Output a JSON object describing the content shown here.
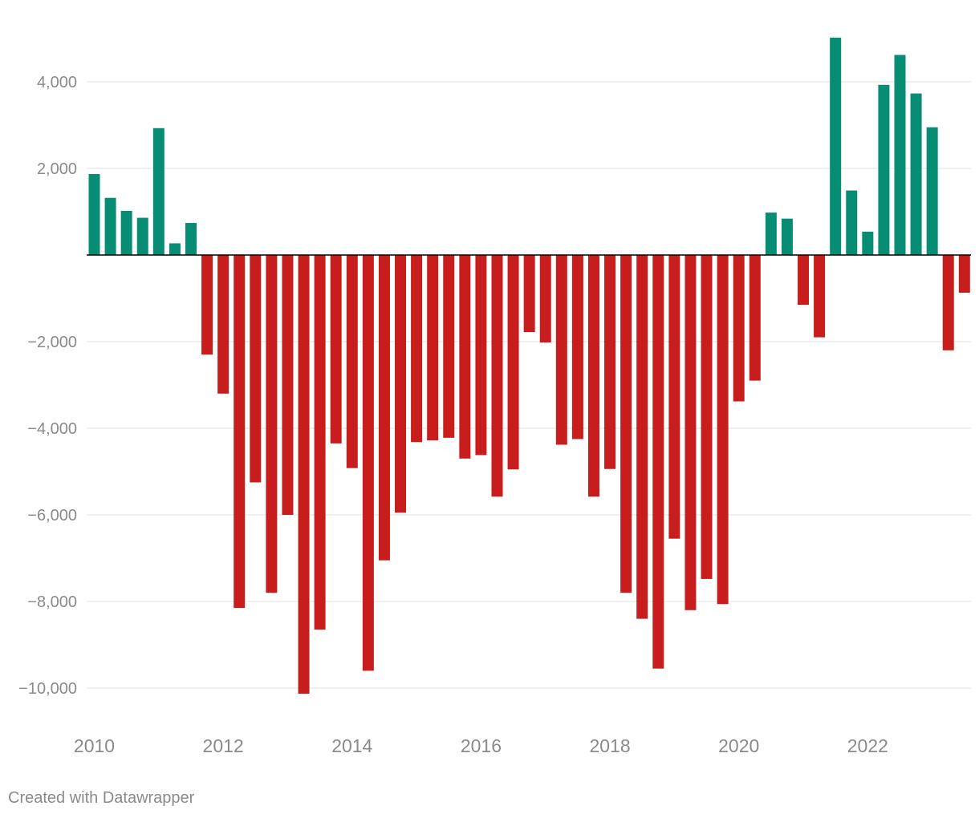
{
  "chart_data": {
    "type": "bar",
    "title": "",
    "xlabel": "",
    "ylabel": "",
    "ylim": [
      -11000,
      5200
    ],
    "yticks": [
      4000,
      2000,
      0,
      -2000,
      -4000,
      -6000,
      -8000,
      -10000
    ],
    "ytick_labels": [
      "4,000",
      "2,000",
      "",
      "−2,000",
      "−4,000",
      "−6,000",
      "−8,000",
      "−10,000"
    ],
    "xticks": [
      {
        "label": "2010",
        "x": 2010.0
      },
      {
        "label": "2012",
        "x": 2012.0
      },
      {
        "label": "2014",
        "x": 2014.0
      },
      {
        "label": "2016",
        "x": 2016.0
      },
      {
        "label": "2018",
        "x": 2018.0
      },
      {
        "label": "2020",
        "x": 2020.0
      },
      {
        "label": "2022",
        "x": 2022.0
      }
    ],
    "x_start": 2010.0,
    "x_step": 0.25,
    "colors": {
      "positive": "#078d74",
      "negative": "#c71e1d",
      "grid": "#e6e6e6",
      "axis": "#000000",
      "tick_text": "#8a8a8a"
    },
    "values": [
      1870,
      1320,
      1020,
      860,
      2930,
      270,
      740,
      -2300,
      -3200,
      -8150,
      -5250,
      -7800,
      -6000,
      -10130,
      -8650,
      -4350,
      -4920,
      -9600,
      -7050,
      -5950,
      -4320,
      -4280,
      -4220,
      -4700,
      -4620,
      -5580,
      -4950,
      -1780,
      -2020,
      -4380,
      -4250,
      -5580,
      -4940,
      -7800,
      -8400,
      -9550,
      -6550,
      -8200,
      -7480,
      -8060,
      -3380,
      -2900,
      980,
      840,
      -1150,
      -1900,
      5020,
      1490,
      540,
      3930,
      4620,
      3730,
      2950,
      -2200,
      -870
    ]
  },
  "footer": {
    "credit": "Created with Datawrapper"
  }
}
